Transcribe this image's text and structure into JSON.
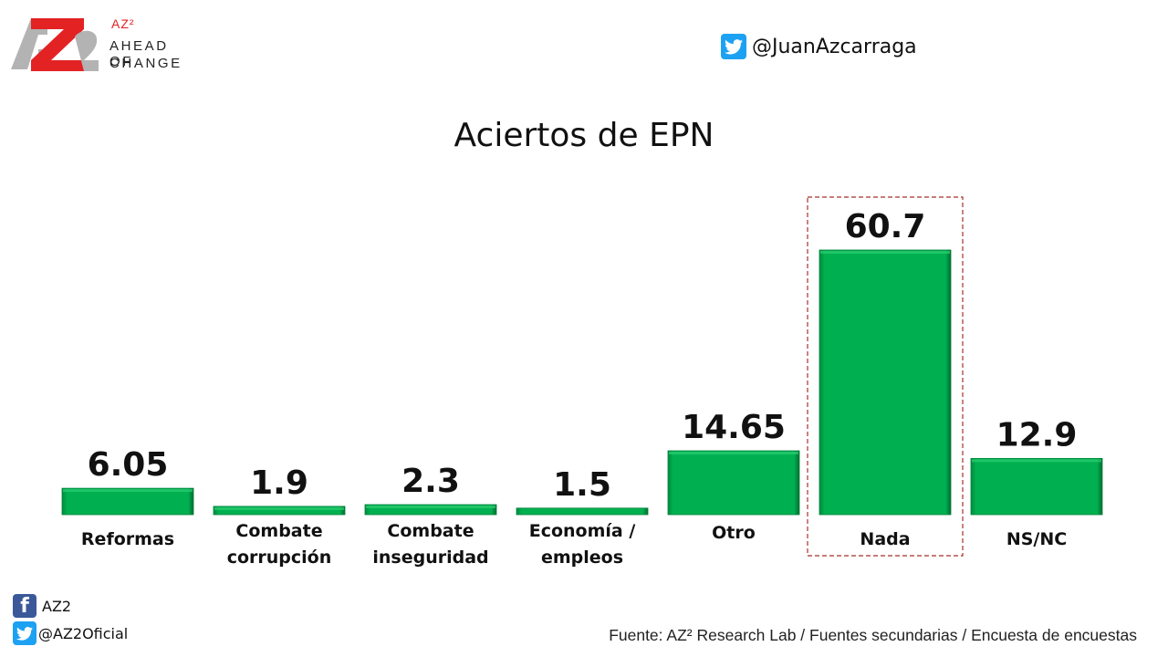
{
  "header": {
    "logo": {
      "mark": "AZ2",
      "superscript_brand": "AZ²",
      "tagline_line1": "AHEAD OF",
      "tagline_line2": "CHANGE"
    },
    "twitter_handle": "@JuanAzcarraga",
    "twitter_icon": "twitter-bird-icon"
  },
  "footer": {
    "facebook_icon": "facebook-icon",
    "facebook_label": "AZ2",
    "twitter_icon": "twitter-bird-icon",
    "twitter_label": "@AZ2Oficial",
    "source": "Fuente: AZ² Research Lab / Fuentes secundarias / Encuesta de encuestas"
  },
  "colors": {
    "bar": "#00b050",
    "highlight_box": "#a5312b",
    "logo_red": "#e32224",
    "logo_gray": "#b3b3b3",
    "twitter": "#1da1f2",
    "facebook": "#3b5998"
  },
  "chart_data": {
    "type": "bar",
    "title": "Aciertos de EPN",
    "xlabel": "",
    "ylabel": "",
    "ylim": [
      0,
      60.7
    ],
    "grid": false,
    "legend": "none",
    "categories": [
      [
        "Reformas"
      ],
      [
        "Combate",
        "corrupción"
      ],
      [
        "Combate",
        "inseguridad"
      ],
      [
        "Economía /",
        "empleos"
      ],
      [
        "Otro"
      ],
      [
        "Nada"
      ],
      [
        "NS/NC"
      ]
    ],
    "values": [
      6.05,
      1.9,
      2.3,
      1.5,
      14.65,
      60.7,
      12.9
    ],
    "value_labels": [
      "6.05",
      "1.9",
      "2.3",
      "1.5",
      "14.65",
      "60.7",
      "12.9"
    ],
    "highlighted_category": "Nada"
  }
}
